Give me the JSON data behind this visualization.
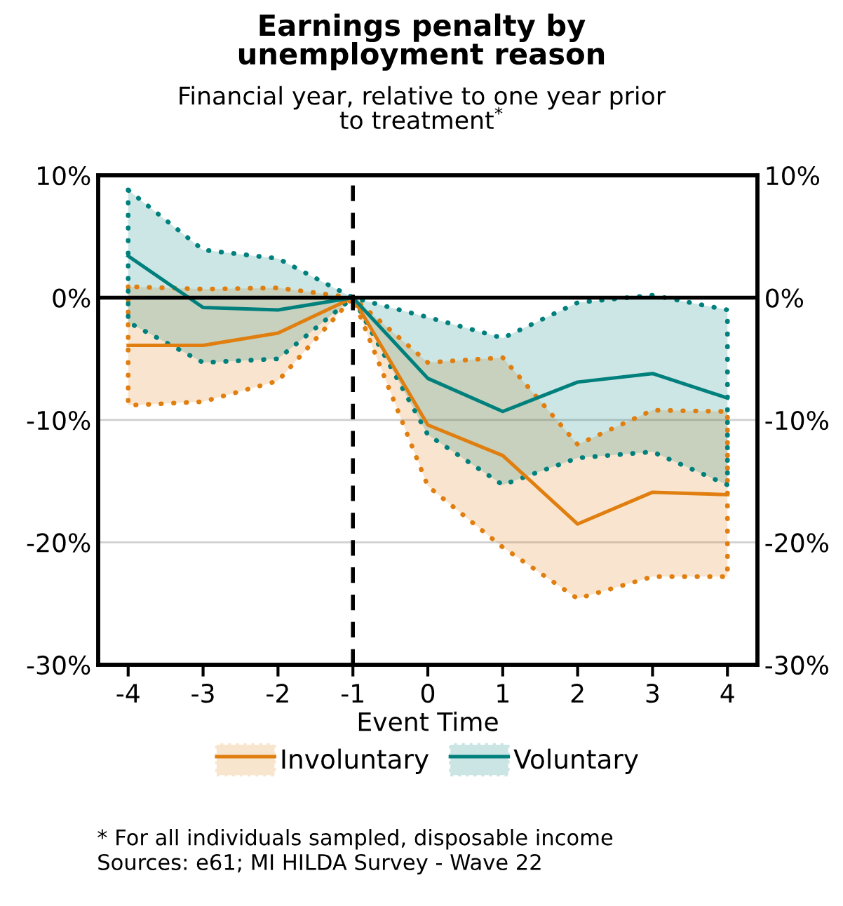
{
  "chart_data": {
    "type": "line",
    "title": "Earnings penalty by\nunemployment reason",
    "subtitle": "Financial year, relative to one year prior\nto treatment$^{*}$",
    "xlabel": "Event Time",
    "x": [
      -4,
      -3,
      -2,
      -1,
      0,
      1,
      2,
      3,
      4
    ],
    "series": [
      {
        "name": "Involuntary",
        "color": "#e07f10",
        "values": [
          -3.9,
          -3.9,
          -2.9,
          0,
          -10.4,
          -12.9,
          -18.5,
          -15.9,
          -16.1
        ],
        "lower": [
          -8.8,
          -8.5,
          -6.8,
          0,
          -15.4,
          -20.4,
          -24.6,
          -22.8,
          -22.8
        ],
        "upper": [
          0.9,
          0.7,
          0.8,
          0,
          -5.3,
          -4.9,
          -12.0,
          -9.2,
          -9.3
        ]
      },
      {
        "name": "Voluntary",
        "color": "#00807c",
        "values": [
          3.4,
          -0.8,
          -1.0,
          0,
          -6.6,
          -9.3,
          -6.9,
          -6.2,
          -8.2
        ],
        "lower": [
          -2.0,
          -5.3,
          -5.0,
          0,
          -11.2,
          -15.3,
          -13.1,
          -12.6,
          -15.3
        ],
        "upper": [
          8.8,
          3.9,
          3.2,
          0,
          -1.6,
          -3.3,
          -0.4,
          0.2,
          -1.0
        ]
      }
    ],
    "xlim": [
      -4.4,
      4.4
    ],
    "xticks": [
      -4,
      -3,
      -2,
      -1,
      0,
      1,
      2,
      3,
      4
    ],
    "ylim": [
      -30,
      10
    ],
    "yticks": [
      {
        "value": -30,
        "label": "-30%"
      },
      {
        "value": -20,
        "label": "-20%"
      },
      {
        "value": -10,
        "label": "-10%"
      },
      {
        "value": 0,
        "label": "0%"
      },
      {
        "value": 10,
        "label": "10%"
      }
    ],
    "y2lim": [
      -30,
      10
    ],
    "y2ticks": [
      {
        "value": -30,
        "label": "-30%"
      },
      {
        "value": -20,
        "label": "-20%"
      },
      {
        "value": -10,
        "label": "-10%"
      },
      {
        "value": 0,
        "label": "0%"
      },
      {
        "value": 10,
        "label": "10%"
      }
    ],
    "ref_lines": [
      {
        "axis": "y",
        "value": 0,
        "color": "#000000",
        "line_style": "solid"
      },
      {
        "axis": "x",
        "value": -1,
        "color": "#000000",
        "line_style": "dashed"
      }
    ],
    "grid": "y",
    "legend": "bottom",
    "line_style": "solid",
    "annotations": [
      "* For all individuals sampled, disposable income\nSources: e61; MI HILDA Survey - Wave 22"
    ]
  }
}
